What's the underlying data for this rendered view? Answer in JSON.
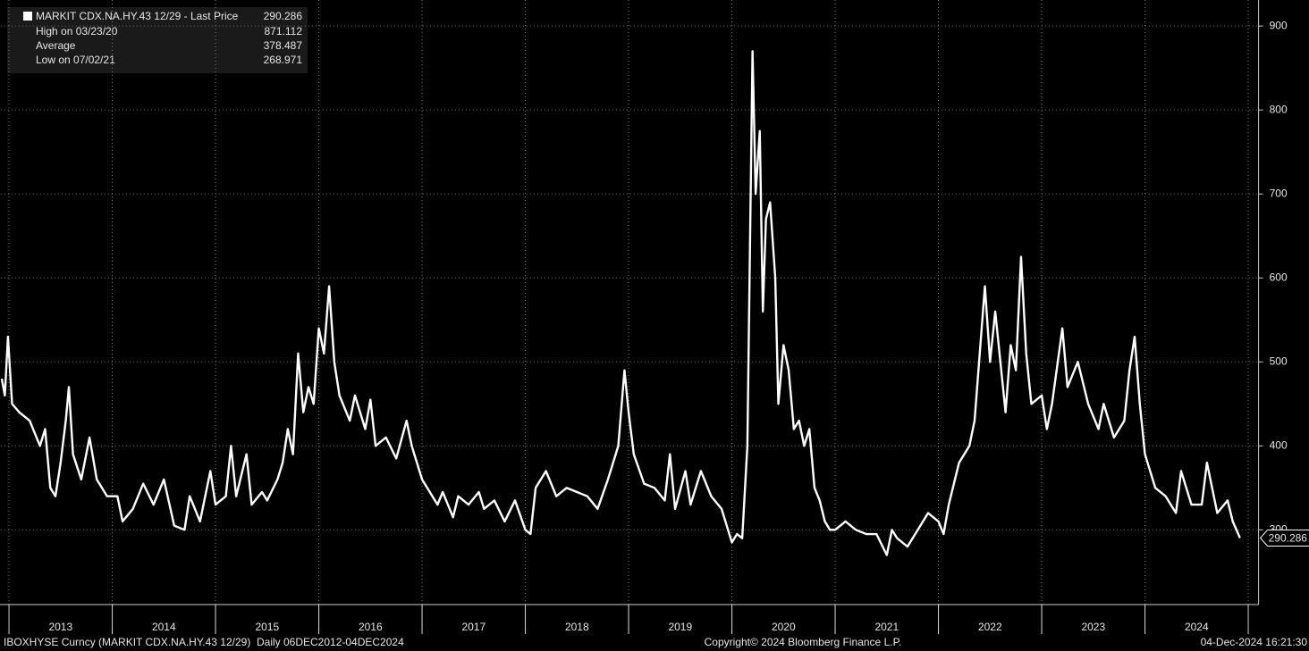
{
  "chart_data": {
    "type": "line",
    "legend_title": "MARKIT CDX.NA.HY.43 12/29 - Last Price",
    "stats": [
      {
        "label": "High on 03/23/20",
        "value": 871.112
      },
      {
        "label": "Average",
        "value": 378.487
      },
      {
        "label": "Low on 07/02/21",
        "value": 268.971
      }
    ],
    "x": [
      2012.93,
      2012.96,
      2012.99,
      2013.03,
      2013.1,
      2013.2,
      2013.3,
      2013.35,
      2013.4,
      2013.45,
      2013.5,
      2013.55,
      2013.58,
      2013.62,
      2013.7,
      2013.78,
      2013.85,
      2013.95,
      2014.05,
      2014.1,
      2014.2,
      2014.3,
      2014.4,
      2014.5,
      2014.6,
      2014.7,
      2014.75,
      2014.85,
      2014.95,
      2015.0,
      2015.1,
      2015.15,
      2015.2,
      2015.3,
      2015.35,
      2015.45,
      2015.5,
      2015.6,
      2015.65,
      2015.7,
      2015.75,
      2015.8,
      2015.85,
      2015.9,
      2015.95,
      2016.0,
      2016.05,
      2016.1,
      2016.15,
      2016.2,
      2016.3,
      2016.35,
      2016.45,
      2016.5,
      2016.55,
      2016.65,
      2016.75,
      2016.85,
      2016.9,
      2017.0,
      2017.1,
      2017.15,
      2017.2,
      2017.3,
      2017.35,
      2017.45,
      2017.55,
      2017.6,
      2017.7,
      2017.8,
      2017.9,
      2018.0,
      2018.05,
      2018.1,
      2018.2,
      2018.3,
      2018.4,
      2018.5,
      2018.6,
      2018.7,
      2018.8,
      2018.85,
      2018.9,
      2018.96,
      2019.0,
      2019.05,
      2019.15,
      2019.25,
      2019.35,
      2019.4,
      2019.45,
      2019.55,
      2019.6,
      2019.7,
      2019.8,
      2019.9,
      2020.0,
      2020.05,
      2020.1,
      2020.15,
      2020.2,
      2020.23,
      2020.27,
      2020.3,
      2020.33,
      2020.37,
      2020.42,
      2020.45,
      2020.5,
      2020.55,
      2020.6,
      2020.65,
      2020.7,
      2020.75,
      2020.8,
      2020.85,
      2020.9,
      2020.95,
      2021.0,
      2021.1,
      2021.2,
      2021.3,
      2021.4,
      2021.5,
      2021.55,
      2021.6,
      2021.7,
      2021.8,
      2021.9,
      2022.0,
      2022.05,
      2022.1,
      2022.2,
      2022.3,
      2022.35,
      2022.45,
      2022.5,
      2022.55,
      2022.65,
      2022.7,
      2022.75,
      2022.8,
      2022.85,
      2022.9,
      2023.0,
      2023.05,
      2023.1,
      2023.2,
      2023.25,
      2023.35,
      2023.45,
      2023.55,
      2023.6,
      2023.7,
      2023.8,
      2023.85,
      2023.9,
      2023.95,
      2024.0,
      2024.1,
      2024.2,
      2024.3,
      2024.35,
      2024.45,
      2024.55,
      2024.6,
      2024.7,
      2024.8,
      2024.85,
      2024.92
    ],
    "series": [
      {
        "name": "MARKIT CDX.NA.HY.43 12/29",
        "color": "#ffffff",
        "values": [
          480,
          460,
          530,
          450,
          440,
          430,
          400,
          420,
          350,
          340,
          380,
          430,
          470,
          390,
          360,
          410,
          360,
          340,
          340,
          310,
          325,
          355,
          330,
          360,
          305,
          300,
          340,
          310,
          370,
          330,
          340,
          400,
          340,
          390,
          330,
          345,
          335,
          360,
          380,
          420,
          390,
          510,
          440,
          470,
          450,
          540,
          510,
          590,
          500,
          460,
          430,
          460,
          420,
          455,
          400,
          410,
          385,
          430,
          400,
          360,
          340,
          330,
          345,
          315,
          340,
          330,
          345,
          325,
          335,
          310,
          335,
          300,
          295,
          350,
          370,
          340,
          350,
          345,
          340,
          325,
          360,
          380,
          400,
          490,
          440,
          390,
          355,
          350,
          335,
          390,
          325,
          370,
          330,
          370,
          340,
          325,
          285,
          295,
          290,
          400,
          870,
          700,
          775,
          560,
          670,
          690,
          600,
          450,
          520,
          490,
          420,
          430,
          400,
          420,
          350,
          335,
          310,
          300,
          300,
          310,
          300,
          295,
          295,
          270,
          300,
          290,
          280,
          300,
          320,
          310,
          295,
          330,
          380,
          400,
          430,
          590,
          500,
          560,
          440,
          520,
          490,
          625,
          510,
          450,
          460,
          420,
          450,
          540,
          470,
          500,
          450,
          420,
          450,
          410,
          430,
          490,
          530,
          450,
          390,
          350,
          340,
          320,
          370,
          330,
          330,
          380,
          320,
          335,
          310,
          290.286
        ]
      }
    ],
    "xlim": [
      2012.92,
      2025.1
    ],
    "xticks": [
      {
        "value": 2013.5,
        "label": "2013"
      },
      {
        "value": 2014.5,
        "label": "2014"
      },
      {
        "value": 2015.5,
        "label": "2015"
      },
      {
        "value": 2016.5,
        "label": "2016"
      },
      {
        "value": 2017.5,
        "label": "2017"
      },
      {
        "value": 2018.5,
        "label": "2018"
      },
      {
        "value": 2019.5,
        "label": "2019"
      },
      {
        "value": 2020.5,
        "label": "2020"
      },
      {
        "value": 2021.5,
        "label": "2021"
      },
      {
        "value": 2022.5,
        "label": "2022"
      },
      {
        "value": 2023.5,
        "label": "2023"
      },
      {
        "value": 2024.5,
        "label": "2024"
      }
    ],
    "ylim": [
      211,
      931
    ],
    "yticks": [
      300,
      400,
      500,
      600,
      700,
      800,
      900
    ],
    "grid": true,
    "footer_left": "IBOXHYSE Curncy (MARKIT CDX.NA.HY.43 12/29)  Daily 06DEC2012-04DEC2024",
    "footer_center": "Copyright© 2024 Bloomberg Finance L.P.",
    "footer_right": "04-Dec-2024 16:21:30"
  }
}
